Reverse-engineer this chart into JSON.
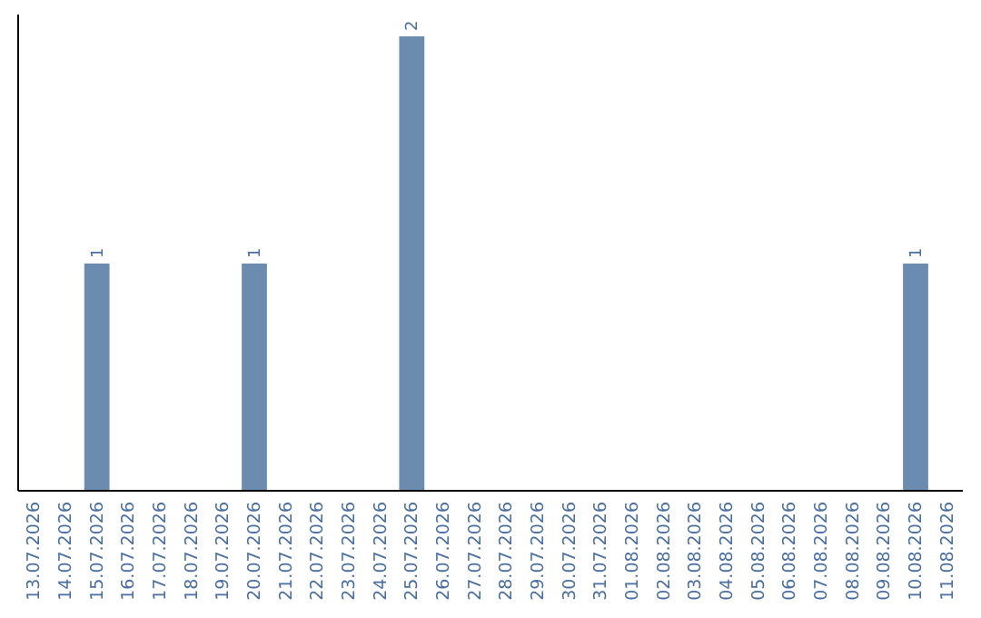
{
  "chart_data": {
    "type": "bar",
    "categories": [
      "13.07.2026",
      "14.07.2026",
      "15.07.2026",
      "16.07.2026",
      "17.07.2026",
      "18.07.2026",
      "19.07.2026",
      "20.07.2026",
      "21.07.2026",
      "22.07.2026",
      "23.07.2026",
      "24.07.2026",
      "25.07.2026",
      "26.07.2026",
      "27.07.2026",
      "28.07.2026",
      "29.07.2026",
      "30.07.2026",
      "31.07.2026",
      "01.08.2026",
      "02.08.2026",
      "03.08.2026",
      "04.08.2026",
      "05.08.2026",
      "06.08.2026",
      "07.08.2026",
      "08.08.2026",
      "09.08.2026",
      "10.08.2026",
      "11.08.2026"
    ],
    "values": [
      0,
      0,
      1,
      0,
      0,
      0,
      0,
      1,
      0,
      0,
      0,
      0,
      2,
      0,
      0,
      0,
      0,
      0,
      0,
      0,
      0,
      0,
      0,
      0,
      0,
      0,
      0,
      0,
      1,
      0
    ],
    "value_labels": [
      null,
      null,
      "1",
      null,
      null,
      null,
      null,
      "1",
      null,
      null,
      null,
      null,
      "2",
      null,
      null,
      null,
      null,
      null,
      null,
      null,
      null,
      null,
      null,
      null,
      null,
      null,
      null,
      null,
      "1",
      null
    ],
    "color": "#6b8cae"
  }
}
